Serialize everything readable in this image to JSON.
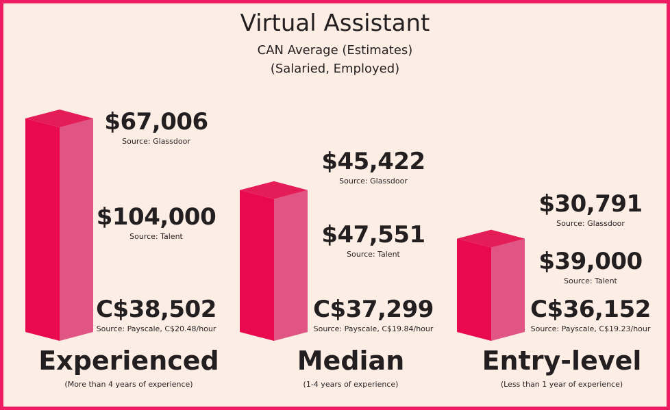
{
  "colors": {
    "border": "#ee1d63",
    "background": "#fdeee5",
    "bar_front": "#e8094f",
    "bar_side": "#e05584",
    "bar_top": "#e41c58",
    "text": "#231f20"
  },
  "title": "Virtual Assistant",
  "subtitle1": "CAN Average (Estimates)",
  "subtitle2": "(Salaried, Employed)",
  "chart_data": {
    "type": "bar",
    "title": "Virtual Assistant",
    "categories": [
      "Experienced",
      "Median",
      "Entry-level"
    ],
    "category_notes": [
      "(More than 4 years of experience)",
      "(1-4 years of experience)",
      "(Less than 1 year of experience)"
    ],
    "groups": [
      {
        "category": "Experienced",
        "bar_value": 67006,
        "labels": [
          {
            "value": "$67,006",
            "source": "Source: Glassdoor"
          },
          {
            "value": "$104,000",
            "source": "Source: Talent"
          },
          {
            "value": "C$38,502",
            "source": "Source: Payscale, C$20.48/hour"
          }
        ]
      },
      {
        "category": "Median",
        "bar_value": 45422,
        "labels": [
          {
            "value": "$45,422",
            "source": "Source: Glassdoor"
          },
          {
            "value": "$47,551",
            "source": "Source: Talent"
          },
          {
            "value": "C$37,299",
            "source": "Source: Payscale, C$19.84/hour"
          }
        ]
      },
      {
        "category": "Entry-level",
        "bar_value": 30791,
        "labels": [
          {
            "value": "$30,791",
            "source": "Source: Glassdoor"
          },
          {
            "value": "$39,000",
            "source": "Source: Talent"
          },
          {
            "value": "C$36,152",
            "source": "Source: Payscale, C$19.23/hour"
          }
        ]
      }
    ]
  }
}
